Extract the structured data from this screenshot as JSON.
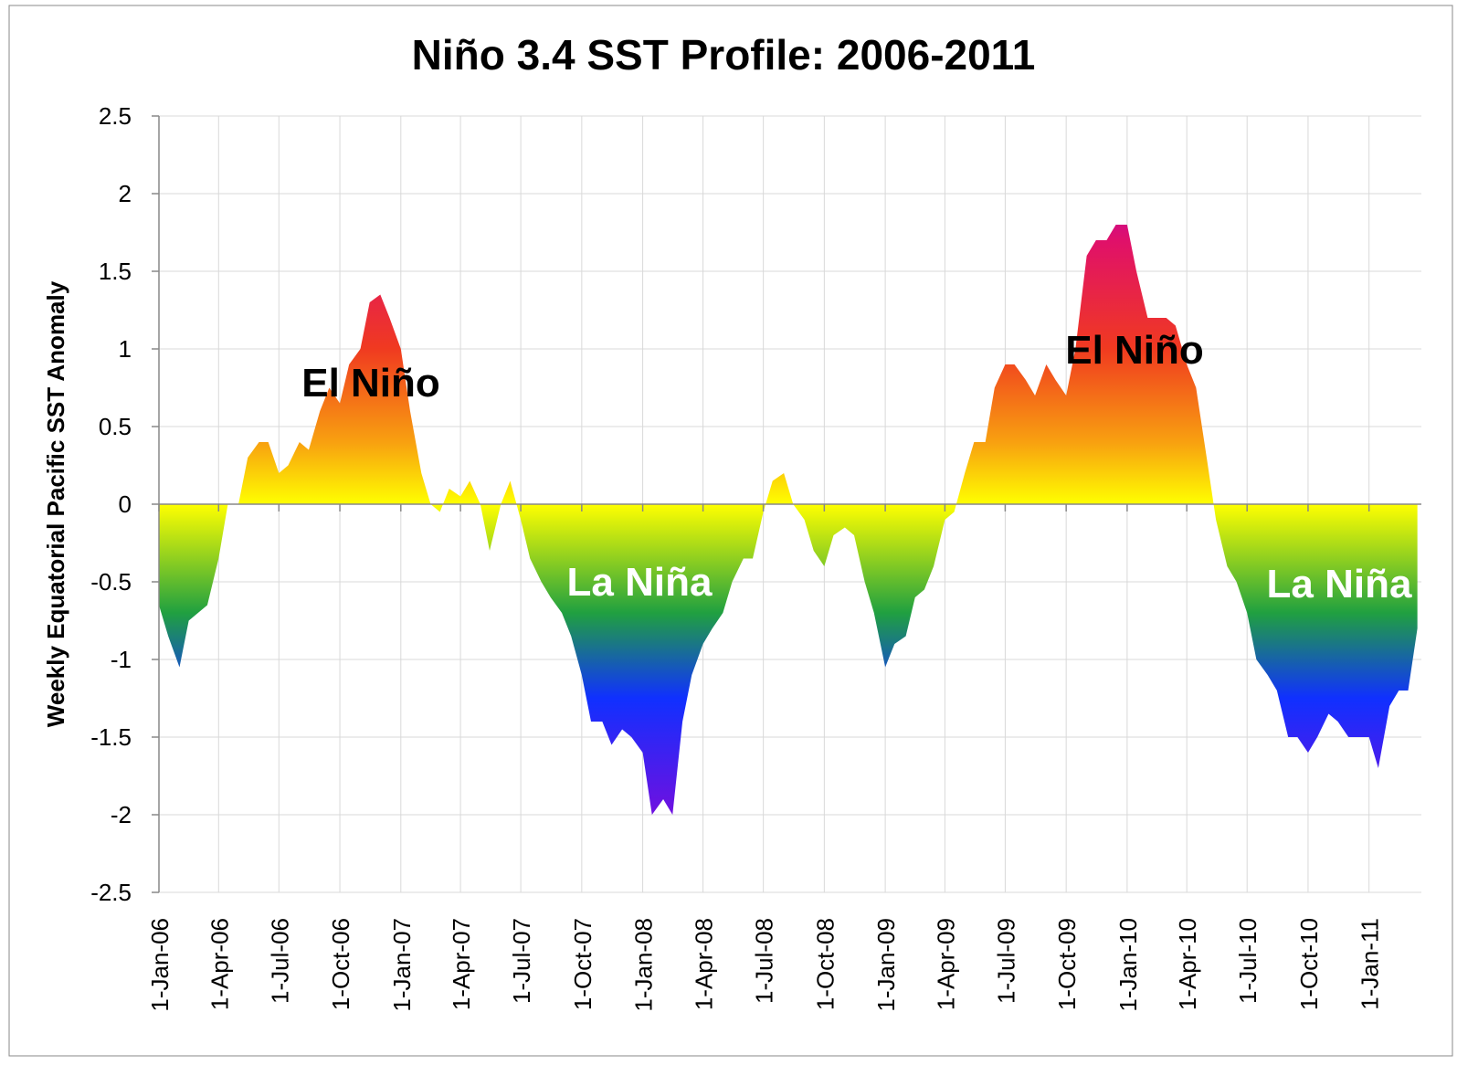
{
  "chart_data": {
    "type": "area",
    "title": "Niño 3.4 SST Profile:  2006-2011",
    "y_label": "Weekly Equatorial Pacific SST Anomaly",
    "grid": true,
    "xlim": [
      "2006-01-01",
      "2011-03-21"
    ],
    "xticks": [
      {
        "value": "2006-01-01",
        "label": "1-Jan-06"
      },
      {
        "value": "2006-04-01",
        "label": "1-Apr-06"
      },
      {
        "value": "2006-07-01",
        "label": "1-Jul-06"
      },
      {
        "value": "2006-10-01",
        "label": "1-Oct-06"
      },
      {
        "value": "2007-01-01",
        "label": "1-Jan-07"
      },
      {
        "value": "2007-04-01",
        "label": "1-Apr-07"
      },
      {
        "value": "2007-07-01",
        "label": "1-Jul-07"
      },
      {
        "value": "2007-10-01",
        "label": "1-Oct-07"
      },
      {
        "value": "2008-01-01",
        "label": "1-Jan-08"
      },
      {
        "value": "2008-04-01",
        "label": "1-Apr-08"
      },
      {
        "value": "2008-07-01",
        "label": "1-Jul-08"
      },
      {
        "value": "2008-10-01",
        "label": "1-Oct-08"
      },
      {
        "value": "2009-01-01",
        "label": "1-Jan-09"
      },
      {
        "value": "2009-04-01",
        "label": "1-Apr-09"
      },
      {
        "value": "2009-07-01",
        "label": "1-Jul-09"
      },
      {
        "value": "2009-10-01",
        "label": "1-Oct-09"
      },
      {
        "value": "2010-01-01",
        "label": "1-Jan-10"
      },
      {
        "value": "2010-04-01",
        "label": "1-Apr-10"
      },
      {
        "value": "2010-07-01",
        "label": "1-Jul-10"
      },
      {
        "value": "2010-10-01",
        "label": "1-Oct-10"
      },
      {
        "value": "2011-01-01",
        "label": "1-Jan-11"
      }
    ],
    "ylim": [
      -2.5,
      2.5
    ],
    "yticks": [
      -2.5,
      -2,
      -1.5,
      -1,
      -0.5,
      0,
      0.5,
      1,
      1.5,
      2,
      2.5
    ],
    "annotations": [
      "El Niño",
      "La Niña",
      "El Niño",
      "La Niña"
    ],
    "x": [
      "2006-01-01",
      "2006-01-15",
      "2006-02-01",
      "2006-02-15",
      "2006-03-01",
      "2006-03-15",
      "2006-04-01",
      "2006-04-15",
      "2006-05-01",
      "2006-05-15",
      "2006-06-01",
      "2006-06-15",
      "2006-07-01",
      "2006-07-15",
      "2006-08-01",
      "2006-08-15",
      "2006-09-01",
      "2006-09-15",
      "2006-10-01",
      "2006-10-15",
      "2006-11-01",
      "2006-11-15",
      "2006-12-01",
      "2006-12-15",
      "2007-01-01",
      "2007-01-15",
      "2007-02-01",
      "2007-02-15",
      "2007-03-01",
      "2007-03-15",
      "2007-04-01",
      "2007-04-15",
      "2007-05-01",
      "2007-05-15",
      "2007-06-01",
      "2007-06-15",
      "2007-07-01",
      "2007-07-15",
      "2007-08-01",
      "2007-08-15",
      "2007-09-01",
      "2007-09-15",
      "2007-10-01",
      "2007-10-15",
      "2007-11-01",
      "2007-11-15",
      "2007-12-01",
      "2007-12-15",
      "2008-01-01",
      "2008-01-15",
      "2008-02-01",
      "2008-02-15",
      "2008-03-01",
      "2008-03-15",
      "2008-04-01",
      "2008-04-15",
      "2008-05-01",
      "2008-05-15",
      "2008-06-01",
      "2008-06-15",
      "2008-07-01",
      "2008-07-15",
      "2008-08-01",
      "2008-08-15",
      "2008-09-01",
      "2008-09-15",
      "2008-10-01",
      "2008-10-15",
      "2008-11-01",
      "2008-11-15",
      "2008-12-01",
      "2008-12-15",
      "2009-01-01",
      "2009-01-15",
      "2009-02-01",
      "2009-02-15",
      "2009-03-01",
      "2009-03-15",
      "2009-04-01",
      "2009-04-15",
      "2009-05-01",
      "2009-05-15",
      "2009-06-01",
      "2009-06-15",
      "2009-07-01",
      "2009-07-15",
      "2009-08-01",
      "2009-08-15",
      "2009-09-01",
      "2009-09-15",
      "2009-10-01",
      "2009-10-15",
      "2009-11-01",
      "2009-11-15",
      "2009-12-01",
      "2009-12-15",
      "2010-01-01",
      "2010-01-15",
      "2010-02-01",
      "2010-02-15",
      "2010-03-01",
      "2010-03-15",
      "2010-04-01",
      "2010-04-15",
      "2010-05-01",
      "2010-05-15",
      "2010-06-01",
      "2010-06-15",
      "2010-07-01",
      "2010-07-15",
      "2010-08-01",
      "2010-08-15",
      "2010-09-01",
      "2010-09-15",
      "2010-10-01",
      "2010-10-15",
      "2010-11-01",
      "2010-11-15",
      "2010-12-01",
      "2010-12-15",
      "2011-01-01",
      "2011-01-15",
      "2011-02-01",
      "2011-02-15",
      "2011-03-01",
      "2011-03-15"
    ],
    "values": [
      -0.65,
      -0.85,
      -1.05,
      -0.75,
      -0.7,
      -0.65,
      -0.35,
      0,
      0,
      0.3,
      0.4,
      0.4,
      0.2,
      0.25,
      0.4,
      0.35,
      0.6,
      0.75,
      0.65,
      0.9,
      1.0,
      1.3,
      1.35,
      1.2,
      1.0,
      0.6,
      0.2,
      0,
      -0.05,
      0.1,
      0.05,
      0.15,
      0,
      -0.3,
      0,
      0.15,
      -0.1,
      -0.35,
      -0.5,
      -0.6,
      -0.7,
      -0.85,
      -1.1,
      -1.4,
      -1.4,
      -1.55,
      -1.45,
      -1.5,
      -1.6,
      -2.0,
      -1.9,
      -2.0,
      -1.4,
      -1.1,
      -0.9,
      -0.8,
      -0.7,
      -0.5,
      -0.35,
      -0.35,
      -0.05,
      0.15,
      0.2,
      0,
      -0.1,
      -0.3,
      -0.4,
      -0.2,
      -0.15,
      -0.2,
      -0.5,
      -0.7,
      -1.05,
      -0.9,
      -0.85,
      -0.6,
      -0.55,
      -0.4,
      -0.1,
      -0.05,
      0.2,
      0.4,
      0.4,
      0.75,
      0.9,
      0.9,
      0.8,
      0.7,
      0.9,
      0.8,
      0.7,
      1.0,
      1.6,
      1.7,
      1.7,
      1.8,
      1.8,
      1.5,
      1.2,
      1.2,
      1.2,
      1.15,
      0.9,
      0.75,
      0.3,
      -0.1,
      -0.4,
      -0.5,
      -0.7,
      -1.0,
      -1.1,
      -1.2,
      -1.5,
      -1.5,
      -1.6,
      -1.5,
      -1.35,
      -1.4,
      -1.5,
      -1.5,
      -1.5,
      -1.7,
      -1.3,
      -1.2,
      -1.2,
      -0.8
    ]
  }
}
